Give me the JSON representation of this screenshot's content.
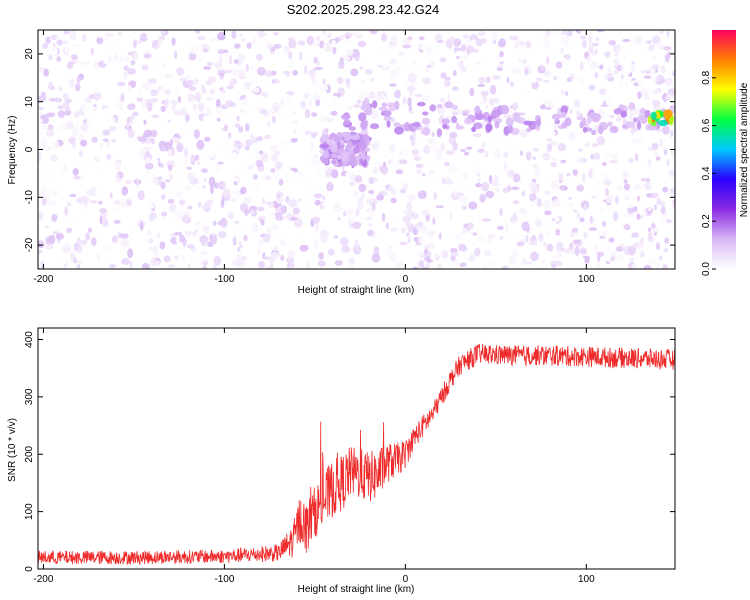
{
  "figure_title": "S202.2025.298.23.42.G24",
  "colors": {
    "snr_line": "#ee2a2a",
    "colorbar_stops": [
      "#ffffff",
      "#d9b8f5",
      "#8a2be2",
      "#2a00ff",
      "#00c8ff",
      "#00ff40",
      "#ffff00",
      "#ff8000",
      "#ff0060"
    ]
  },
  "chart_data": [
    {
      "type": "heatmap",
      "xlabel": "Height of straight line (km)",
      "ylabel": "Frequency (Hz)",
      "xlim": [
        -203,
        149
      ],
      "ylim": [
        -25,
        25
      ],
      "xticks": [
        -200,
        -100,
        0,
        100
      ],
      "yticks": [
        -20,
        -10,
        0,
        10,
        20
      ],
      "xtick_labels": [
        "-200",
        "-100",
        "0",
        "100"
      ],
      "ytick_labels": [
        "-20",
        "-10",
        "0",
        "10",
        "20"
      ],
      "grid": false,
      "colorbar": {
        "label": "Normalized spectral amplitude",
        "range": [
          0,
          1
        ],
        "ticks": [
          0.0,
          0.2,
          0.4,
          0.6,
          0.8
        ],
        "tick_labels": [
          "0.0",
          "0.2",
          "0.4",
          "0.6",
          "0.8"
        ]
      },
      "background_amplitude": [
        0.0,
        0.12
      ],
      "features": [
        {
          "x_range": [
            -40,
            149
          ],
          "frequency": 6.5,
          "amplitude": 0.15
        },
        {
          "x_range": [
            -45,
            -20
          ],
          "frequency": 0,
          "amplitude": 0.15
        },
        {
          "x_range": [
            135,
            149
          ],
          "frequency": 6.5,
          "amplitude": 0.9
        }
      ]
    },
    {
      "type": "line",
      "xlabel": "Height of straight line (km)",
      "ylabel": "SNR (10 * v/v)",
      "xlim": [
        -203,
        149
      ],
      "ylim": [
        0,
        420
      ],
      "xticks": [
        -200,
        -100,
        0,
        100
      ],
      "yticks": [
        0,
        100,
        200,
        300,
        400
      ],
      "xtick_labels": [
        "-200",
        "-100",
        "0",
        "100"
      ],
      "ytick_labels": [
        "0",
        "100",
        "200",
        "300",
        "400"
      ],
      "grid": false,
      "series": [
        {
          "x": [
            -203,
            -150,
            -100,
            -70,
            -62,
            -58,
            -55,
            -50,
            -45,
            -40,
            -35,
            -30,
            -25,
            -20,
            -15,
            -10,
            -5,
            0,
            5,
            10,
            15,
            20,
            25,
            30,
            40,
            60,
            80,
            100,
            120,
            149
          ],
          "y": [
            20,
            20,
            22,
            28,
            50,
            90,
            70,
            100,
            120,
            140,
            150,
            170,
            165,
            160,
            165,
            185,
            190,
            200,
            230,
            250,
            270,
            300,
            330,
            355,
            375,
            372,
            372,
            370,
            368,
            365
          ],
          "noise": [
            12,
            12,
            12,
            15,
            30,
            45,
            45,
            45,
            50,
            50,
            50,
            45,
            45,
            45,
            45,
            35,
            30,
            25,
            20,
            20,
            18,
            18,
            18,
            18,
            18,
            18,
            18,
            18,
            18,
            18
          ]
        }
      ]
    }
  ]
}
